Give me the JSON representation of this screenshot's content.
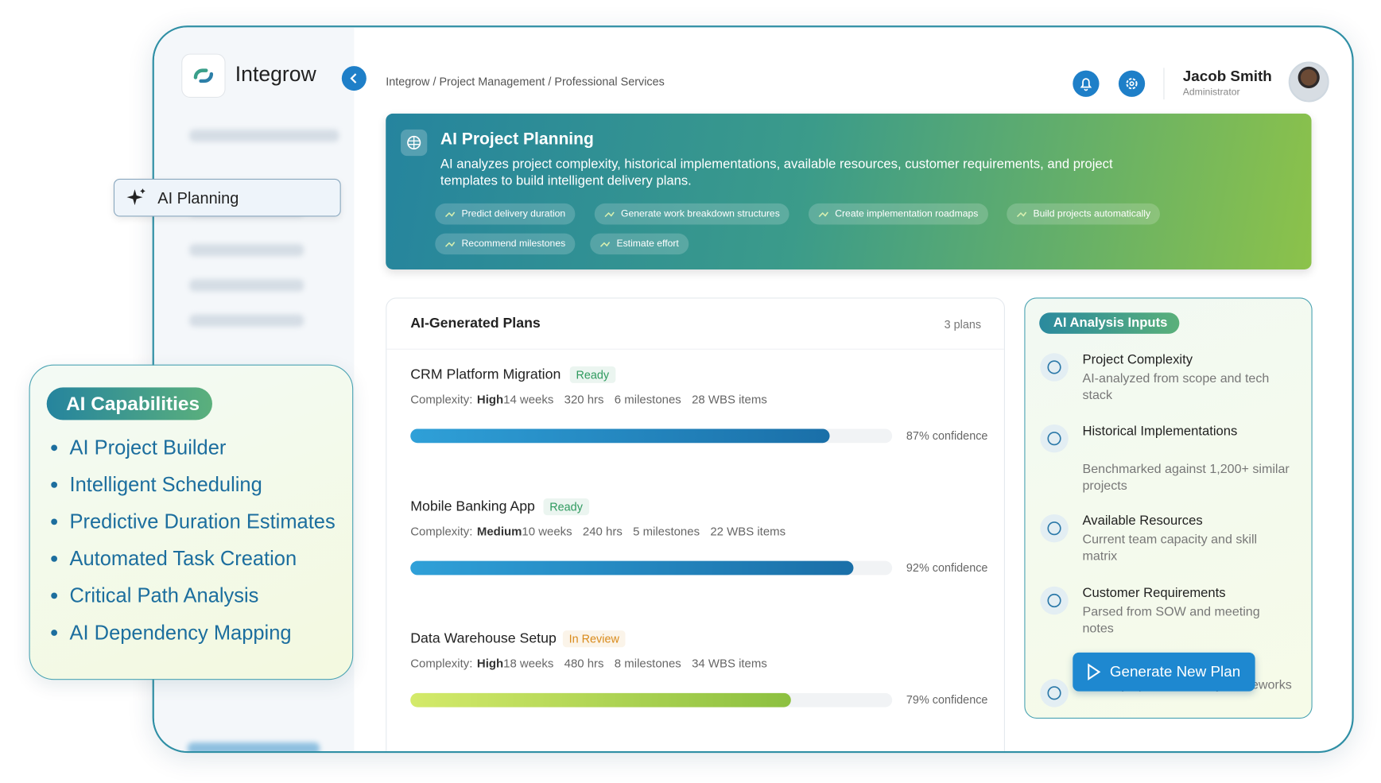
{
  "brand": "Integrow",
  "breadcrumb": "Integrow / Project Management / Professional Services",
  "user": {
    "name": "Jacob Smith",
    "role": "Administrator"
  },
  "sidebar_active": "AI Planning",
  "banner": {
    "title": "AI Project Planning",
    "description": "AI analyzes project complexity, historical implementations, available resources, customer requirements, and project templates to build intelligent delivery plans.",
    "tags": [
      "Predict delivery duration",
      "Generate work breakdown structures",
      "Create implementation roadmaps",
      "Build projects automatically",
      "Recommend milestones",
      "Estimate effort"
    ]
  },
  "plans": {
    "title": "AI-Generated Plans",
    "count": "3 plans",
    "items": [
      {
        "name": "CRM Platform Migration",
        "status": "Ready",
        "status_color": "#2e9a5e",
        "complexity_label": "Complexity:",
        "complexity": "High",
        "weeks": "14 weeks",
        "hours": "320 hrs",
        "milestones": "6 milestones",
        "wbs": "28 WBS items",
        "confidence": 87,
        "confidence_label": "87% confidence",
        "bar_color": "linear-gradient(90deg,#2fa0d8,#1a6fa8)"
      },
      {
        "name": "Mobile Banking App",
        "status": "Ready",
        "status_color": "#2e9a5e",
        "complexity_label": "Complexity:",
        "complexity": "Medium",
        "weeks": "10 weeks",
        "hours": "240 hrs",
        "milestones": "5 milestones",
        "wbs": "22 WBS items",
        "confidence": 92,
        "confidence_label": "92% confidence",
        "bar_color": "linear-gradient(90deg,#2fa0d8,#1a6fa8)"
      },
      {
        "name": "Data Warehouse Setup",
        "status": "In Review",
        "status_color": "#d98a1a",
        "complexity_label": "Complexity:",
        "complexity": "High",
        "weeks": "18 weeks",
        "hours": "480 hrs",
        "milestones": "8 milestones",
        "wbs": "34 WBS items",
        "confidence": 79,
        "confidence_label": "79% confidence",
        "bar_color": "linear-gradient(90deg,#d4ea6a,#8cc040)"
      }
    ]
  },
  "inputs": {
    "title": "AI Analysis Inputs",
    "items": [
      {
        "title": "Project Complexity",
        "description": "AI-analyzed from scope and tech stack"
      },
      {
        "title": "Historical Implementations",
        "description": "Benchmarked against 1,200+ similar projects"
      },
      {
        "title": "Available Resources",
        "description": "Current team capacity and skill matrix"
      },
      {
        "title": "Customer Requirements",
        "description": "Parsed from SOW and meeting notes"
      },
      {
        "title": "",
        "description": "Industry-specific delivery frameworks"
      }
    ],
    "button": "Generate New Plan"
  },
  "capabilities": {
    "title": "AI Capabilities",
    "items": [
      "AI Project Builder",
      "Intelligent Scheduling",
      "Predictive Duration Estimates",
      "Automated Task Creation",
      "Critical Path Analysis",
      "AI Dependency Mapping"
    ]
  }
}
